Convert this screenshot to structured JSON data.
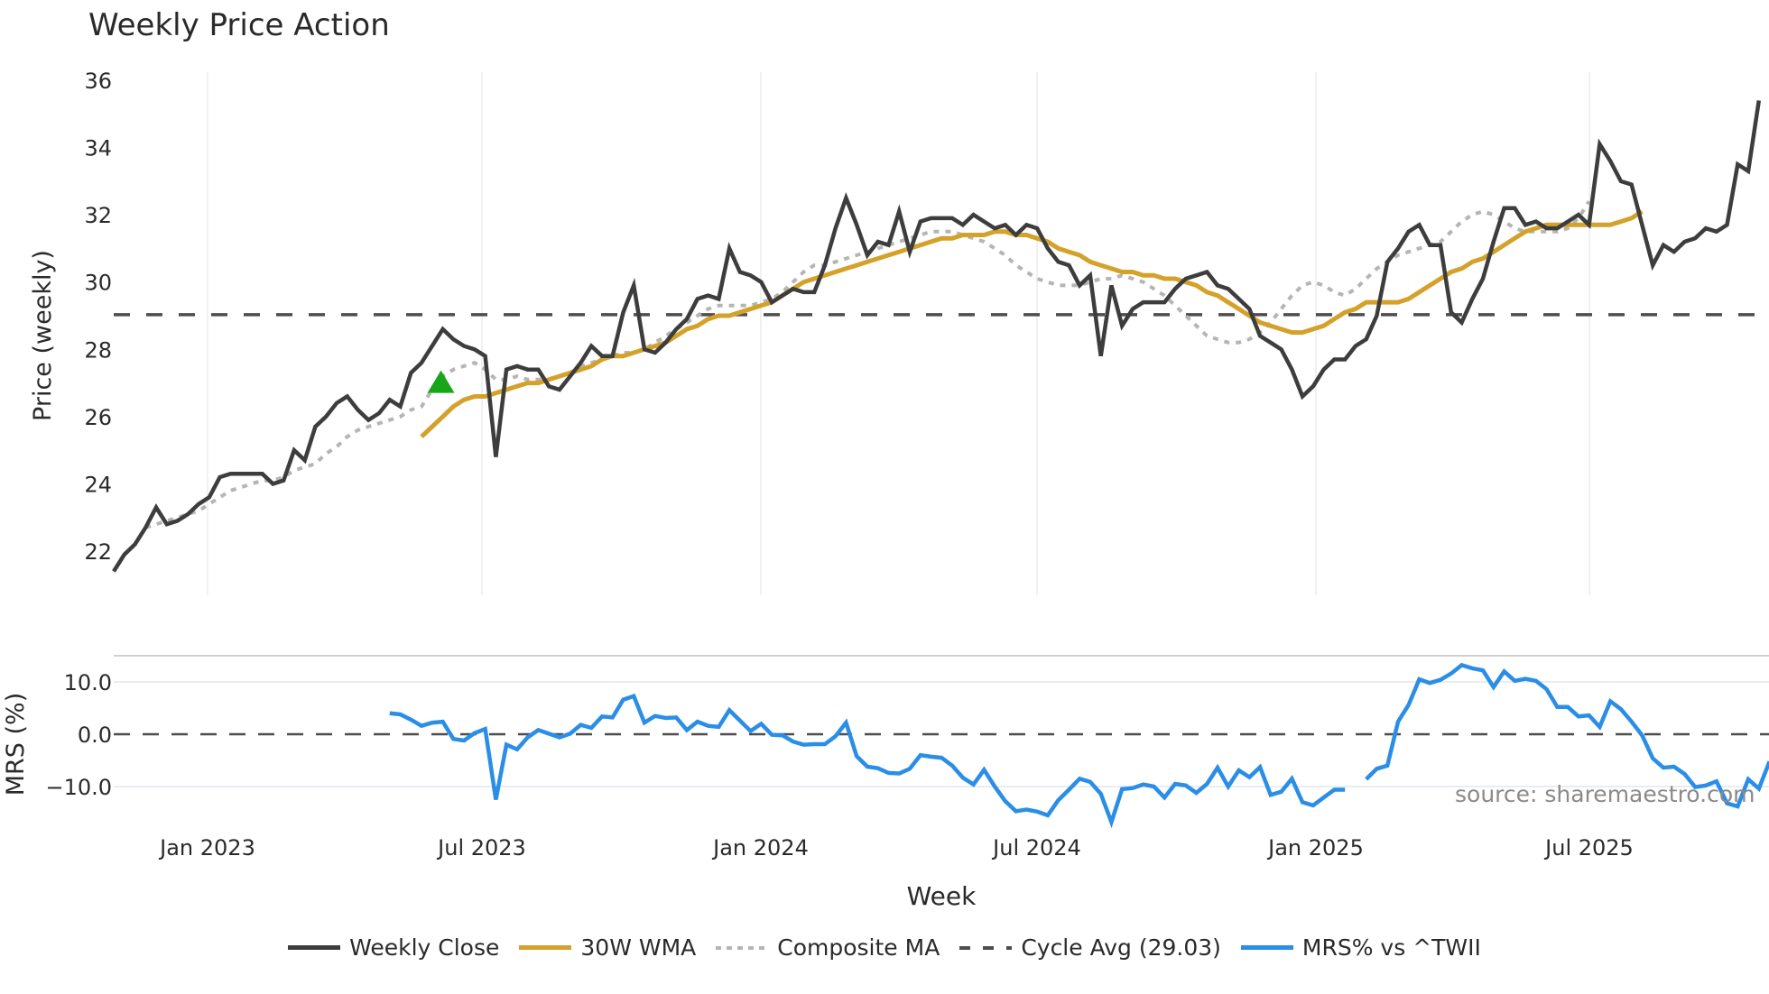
{
  "title": "Weekly Price Action",
  "source_note": "source: sharemaestro.com",
  "legend": [
    {
      "label": "Weekly Close",
      "color": "#3d3d3d",
      "style": "solid"
    },
    {
      "label": "30W WMA",
      "color": "#d4a12a",
      "style": "solid"
    },
    {
      "label": "Composite MA",
      "color": "#b5b5b5",
      "style": "dotted"
    },
    {
      "label": "Cycle Avg (29.03)",
      "color": "#4d4d4d",
      "style": "dashed"
    },
    {
      "label": "MRS% vs ^TWII",
      "color": "#2b8ee6",
      "style": "solid"
    }
  ],
  "colors": {
    "close": "#3d3d3d",
    "wma": "#d4a12a",
    "composite": "#b5b5b5",
    "cycle": "#4d4d4d",
    "mrs": "#2b8ee6",
    "marker": "#19a519",
    "grid": "#e8edf2"
  },
  "chart_data": [
    {
      "type": "line",
      "title": "Weekly Price Action",
      "xlabel": "",
      "ylabel": "Price (weekly)",
      "ylim": [
        21.3,
        36.2
      ],
      "yticks": [
        22,
        24,
        26,
        28,
        30,
        32,
        34,
        36
      ],
      "xtick_labels": [
        "Jan 2023",
        "Jul 2023",
        "Jan 2024",
        "Jul 2024",
        "Jan 2025",
        "Jul 2025"
      ],
      "grid": true,
      "x_start": "2022-10-31",
      "x_step_weeks": 1,
      "series": [
        {
          "name": "Weekly Close",
          "values": [
            21.4,
            21.9,
            22.2,
            22.7,
            23.3,
            22.8,
            22.9,
            23.1,
            23.4,
            23.6,
            24.2,
            24.3,
            24.3,
            24.3,
            24.3,
            24.0,
            24.1,
            25.0,
            24.7,
            25.7,
            26.0,
            26.4,
            26.6,
            26.2,
            25.9,
            26.1,
            26.5,
            26.3,
            27.3,
            27.6,
            28.1,
            28.6,
            28.3,
            28.1,
            28.0,
            27.8,
            24.8,
            27.4,
            27.5,
            27.4,
            27.4,
            26.9,
            26.8,
            27.2,
            27.6,
            28.1,
            27.8,
            27.8,
            29.1,
            29.9,
            28.0,
            27.9,
            28.2,
            28.6,
            28.9,
            29.5,
            29.6,
            29.5,
            31.0,
            30.3,
            30.2,
            30.0,
            29.4,
            29.6,
            29.8,
            29.7,
            29.7,
            30.5,
            31.6,
            32.5,
            31.7,
            30.8,
            31.2,
            31.1,
            32.1,
            30.9,
            31.8,
            31.9,
            31.9,
            31.9,
            31.7,
            32.0,
            31.8,
            31.6,
            31.7,
            31.4,
            31.7,
            31.6,
            31.0,
            30.6,
            30.5,
            29.9,
            30.2,
            27.8,
            29.9,
            28.7,
            29.2,
            29.4,
            29.4,
            29.4,
            29.8,
            30.1,
            30.2,
            30.3,
            29.9,
            29.8,
            29.5,
            29.2,
            28.4,
            28.2,
            28.0,
            27.4,
            26.6,
            26.9,
            27.4,
            27.7,
            27.7,
            28.1,
            28.3,
            29.0,
            30.6,
            31.0,
            31.5,
            31.7,
            31.1,
            31.1,
            29.1,
            28.8,
            29.5,
            30.1,
            31.2,
            32.2,
            32.2,
            31.7,
            31.8,
            31.6,
            31.6,
            31.8,
            32.0,
            31.7,
            34.1,
            33.6,
            33.0,
            32.9,
            31.7,
            30.5,
            31.1,
            30.9,
            31.2,
            31.3,
            31.6,
            31.5,
            31.7,
            33.5,
            33.3,
            35.4
          ]
        },
        {
          "name": "30W WMA",
          "start_index": 29,
          "values": [
            25.4,
            25.7,
            26.0,
            26.3,
            26.5,
            26.6,
            26.6,
            26.7,
            26.8,
            26.9,
            27.0,
            27.0,
            27.1,
            27.2,
            27.3,
            27.4,
            27.5,
            27.7,
            27.8,
            27.8,
            27.9,
            28.0,
            28.1,
            28.2,
            28.4,
            28.6,
            28.7,
            28.9,
            29.0,
            29.0,
            29.1,
            29.2,
            29.3,
            29.4,
            29.6,
            29.8,
            30.0,
            30.1,
            30.2,
            30.3,
            30.4,
            30.5,
            30.6,
            30.7,
            30.8,
            30.9,
            31.0,
            31.1,
            31.2,
            31.3,
            31.3,
            31.4,
            31.4,
            31.4,
            31.5,
            31.5,
            31.4,
            31.4,
            31.3,
            31.2,
            31.0,
            30.9,
            30.8,
            30.6,
            30.5,
            30.4,
            30.3,
            30.3,
            30.2,
            30.2,
            30.1,
            30.1,
            30.0,
            29.9,
            29.7,
            29.6,
            29.4,
            29.2,
            29.0,
            28.8,
            28.7,
            28.6,
            28.5,
            28.5,
            28.6,
            28.7,
            28.9,
            29.1,
            29.2,
            29.4,
            29.4,
            29.4,
            29.4,
            29.5,
            29.7,
            29.9,
            30.1,
            30.3,
            30.4,
            30.6,
            30.7,
            30.9,
            31.1,
            31.3,
            31.5,
            31.6,
            31.7,
            31.7,
            31.7,
            31.7,
            31.7,
            31.7,
            31.7,
            31.8,
            31.9,
            32.1
          ]
        },
        {
          "name": "Composite MA",
          "start_index": 3,
          "values": [
            22.7,
            22.8,
            22.9,
            23.0,
            23.1,
            23.2,
            23.4,
            23.6,
            23.8,
            23.9,
            24.0,
            24.1,
            24.1,
            24.2,
            24.4,
            24.5,
            24.6,
            24.9,
            25.1,
            25.4,
            25.6,
            25.7,
            25.8,
            25.9,
            26.0,
            26.2,
            26.3,
            26.8,
            27.2,
            27.4,
            27.5,
            27.6,
            27.4,
            27.1,
            27.1,
            27.2,
            27.1,
            27.1,
            27.1,
            27.2,
            27.3,
            27.5,
            27.6,
            27.7,
            27.8,
            27.9,
            27.9,
            28.0,
            28.2,
            28.4,
            28.6,
            28.8,
            29.0,
            29.2,
            29.3,
            29.3,
            29.3,
            29.3,
            29.4,
            29.5,
            29.7,
            30.0,
            30.3,
            30.5,
            30.5,
            30.6,
            30.7,
            30.8,
            30.9,
            31.0,
            31.1,
            31.2,
            31.3,
            31.4,
            31.5,
            31.5,
            31.5,
            31.4,
            31.3,
            31.2,
            31.0,
            30.8,
            30.5,
            30.3,
            30.1,
            30.0,
            29.9,
            29.9,
            29.9,
            30.0,
            30.1,
            30.1,
            30.2,
            30.1,
            30.0,
            29.8,
            29.6,
            29.3,
            29.0,
            28.7,
            28.4,
            28.3,
            28.2,
            28.2,
            28.3,
            28.5,
            28.8,
            29.2,
            29.6,
            29.9,
            30.0,
            29.9,
            29.7,
            29.6,
            29.8,
            30.1,
            30.4,
            30.6,
            30.8,
            30.9,
            31.0,
            31.1,
            31.2,
            31.5,
            31.8,
            32.0,
            32.1,
            32.0,
            31.8,
            31.6,
            31.5,
            31.5,
            31.5,
            31.5,
            31.6,
            31.9,
            32.4
          ]
        },
        {
          "name": "Cycle Avg (29.03)",
          "constant": 29.03
        }
      ]
    },
    {
      "type": "line",
      "title": "",
      "xlabel": "Week",
      "ylabel": "MRS (%)",
      "ylim": [
        -16,
        16
      ],
      "yticks": [
        -10.0,
        0.0,
        10.0
      ],
      "ytick_labels": [
        "−10.0",
        "0.0",
        "10.0"
      ],
      "xtick_labels": [
        "Jan 2023",
        "Jul 2023",
        "Jan 2024",
        "Jul 2024",
        "Jan 2025",
        "Jul 2025"
      ],
      "series": [
        {
          "name": "MRS% vs ^TWII",
          "start_index": 26,
          "values": [
            4.0,
            3.8,
            2.8,
            1.6,
            2.2,
            2.4,
            -0.9,
            -1.2,
            0.2,
            1.0,
            -12.5,
            -2.0,
            -2.9,
            -0.6,
            0.8,
            0.1,
            -0.6,
            0.1,
            1.8,
            1.2,
            3.4,
            3.2,
            6.6,
            7.3,
            2.2,
            3.5,
            3.1,
            3.2,
            0.8,
            2.4,
            1.6,
            1.4,
            4.6,
            2.6,
            0.6,
            2.0,
            -0.1,
            -0.2,
            -1.4,
            -2.0,
            -1.9,
            -1.9,
            -0.4,
            2.2,
            -4.2,
            -6.2,
            -6.5,
            -7.4,
            -7.5,
            -6.6,
            -4.0,
            -4.3,
            -4.5,
            -6.0,
            -8.3,
            -9.6,
            -6.8,
            -10.0,
            -12.8,
            -14.7,
            -14.4,
            -14.8,
            -15.5,
            -12.6,
            -10.6,
            -8.5,
            -9.1,
            -11.4,
            -16.8,
            -10.5,
            -10.3,
            -9.6,
            -10.0,
            -12.1,
            -9.5,
            -9.8,
            -11.2,
            -9.5,
            -6.4,
            -10.0,
            -6.9,
            -8.2,
            -6.3,
            -11.6,
            -11.0,
            -8.5,
            -13.0,
            -13.6,
            -12.1,
            -10.6,
            -10.6,
            null,
            -8.6,
            -6.6,
            -6.0,
            2.4,
            5.6,
            10.5,
            9.8,
            10.4,
            11.6,
            13.2,
            12.6,
            12.2,
            9.0,
            12.0,
            10.2,
            10.6,
            10.2,
            8.6,
            5.2,
            5.2,
            3.4,
            3.6,
            1.4,
            6.3,
            4.8,
            2.4,
            -0.2,
            -4.6,
            -6.4,
            -6.2,
            -7.6,
            -10.1,
            -9.8,
            -9.0,
            -13.2,
            -13.8,
            -8.6,
            -10.4,
            -5.2
          ]
        },
        {
          "name": "Zero line",
          "constant": 0.0
        }
      ]
    }
  ],
  "marker": {
    "type": "triangle-up",
    "week_index": 31,
    "value": 27.0
  },
  "axis": {
    "price_ylabel": "Price (weekly)",
    "mrs_ylabel": "MRS (%)",
    "xlabel": "Week"
  }
}
